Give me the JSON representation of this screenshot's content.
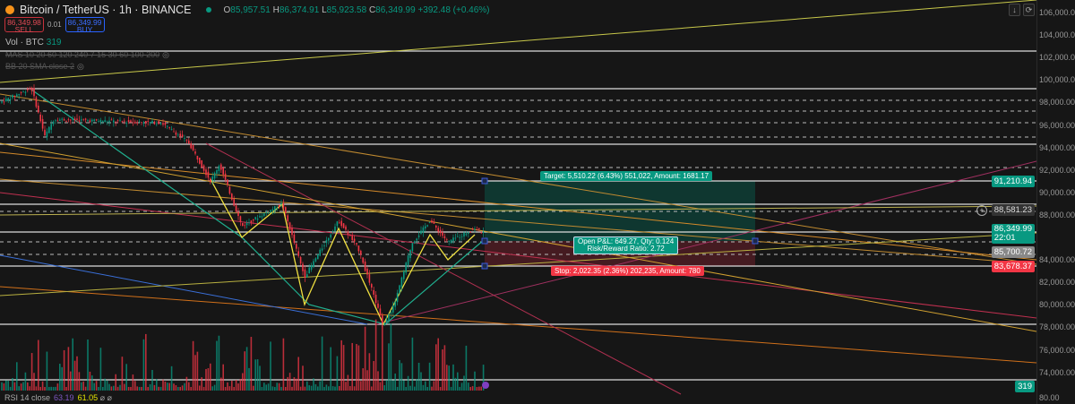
{
  "header": {
    "title": "Bitcoin / TetherUS · 1h · BINANCE",
    "open_label": "O",
    "open": "85,957.51",
    "high_label": "H",
    "high": "86,374.91",
    "low_label": "L",
    "low": "85,923.58",
    "close_label": "C",
    "close": "86,349.99",
    "change": "+392.48 (+0.46%)"
  },
  "trade": {
    "sell_price": "86,349.98",
    "sell_label": "SELL",
    "spread": "0.01",
    "buy_price": "86,349.99",
    "buy_label": "BUY"
  },
  "volume": {
    "label": "Vol · BTC",
    "value": "319"
  },
  "indicators": [
    {
      "label": "MAS 10 20 60 120 240 7 15 30 60 100 200"
    },
    {
      "label": "BB 20 SMA close 2"
    }
  ],
  "rsi": {
    "label": "RSI 14 close",
    "value1": "63.19",
    "value2": "61.05",
    "icons": "⌀ ⌀"
  },
  "toolbar": {
    "scroll_icon": "↓",
    "reset_icon": "⟳"
  },
  "price_axis": {
    "ticks": [
      "106,000.00",
      "104,000.00",
      "102,000.00",
      "100,000.00",
      "98,000.00",
      "96,000.00",
      "94,000.00",
      "92,000.00",
      "90,000.00",
      "88,000.00",
      "84,000.00",
      "82,000.00",
      "80,000.00",
      "78,000.00",
      "76,000.00",
      "74,000.00"
    ],
    "rsi_tick": "80.00"
  },
  "price_labels": {
    "target": "91,210.94",
    "crosshair": "88,581.23",
    "last": "86,349.99",
    "countdown": "22:01",
    "entry": "85,700.72",
    "stop": "83,678.37",
    "volume": "319"
  },
  "position": {
    "target_text": "Target: 5,510.22 (6.43%) 551,022, Amount: 1681.17",
    "pnl_text": "Open P&L: 649.27, Qty: 0.124",
    "rr_text": "Risk/Reward Ratio: 2.72",
    "stop_text": "Stop: 2,022.35 (2.36%) 202,235, Amount: 780"
  },
  "colors": {
    "up": "#089981",
    "down": "#f23645",
    "target_fill": "#0e3b33",
    "stop_fill": "#4a1c22",
    "background": "#161616"
  }
}
